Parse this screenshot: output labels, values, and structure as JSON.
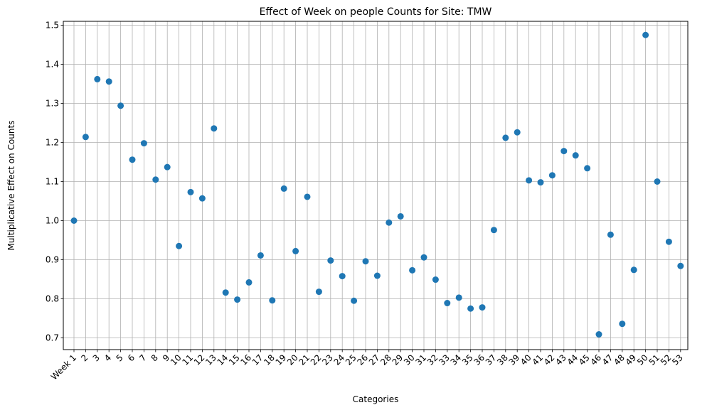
{
  "chart_data": {
    "type": "scatter",
    "title": "Effect of Week on people Counts for Site: TMW",
    "xlabel": "Categories",
    "ylabel": "Multiplicative Effect on Counts",
    "categories": [
      "Week 1",
      "2",
      "3",
      "4",
      "5",
      "6",
      "7",
      "8",
      "9",
      "10",
      "11",
      "12",
      "13",
      "14",
      "15",
      "16",
      "17",
      "18",
      "19",
      "20",
      "21",
      "22",
      "23",
      "24",
      "25",
      "26",
      "27",
      "28",
      "29",
      "30",
      "31",
      "32",
      "33",
      "34",
      "35",
      "36",
      "37",
      "38",
      "39",
      "40",
      "41",
      "42",
      "43",
      "44",
      "45",
      "46",
      "47",
      "48",
      "49",
      "50",
      "51",
      "52",
      "53"
    ],
    "values": [
      1.0,
      1.214,
      1.362,
      1.356,
      1.294,
      1.156,
      1.198,
      1.105,
      1.137,
      0.935,
      1.073,
      1.057,
      1.236,
      0.816,
      0.798,
      0.842,
      0.911,
      0.796,
      1.082,
      0.922,
      1.061,
      0.818,
      0.898,
      0.858,
      0.795,
      0.896,
      0.859,
      0.995,
      1.011,
      0.873,
      0.906,
      0.849,
      0.789,
      0.803,
      0.775,
      0.778,
      0.976,
      1.212,
      1.226,
      1.103,
      1.098,
      1.116,
      1.178,
      1.167,
      1.134,
      0.709,
      0.964,
      0.736,
      0.874,
      1.475,
      1.1,
      0.946,
      0.884
    ],
    "yticks": [
      "0.7",
      "0.8",
      "0.9",
      "1.0",
      "1.1",
      "1.2",
      "1.3",
      "1.4",
      "1.5"
    ],
    "ylim": [
      0.67,
      1.51
    ],
    "grid": true,
    "legend": "none",
    "marker_color": "#1f77b4"
  }
}
